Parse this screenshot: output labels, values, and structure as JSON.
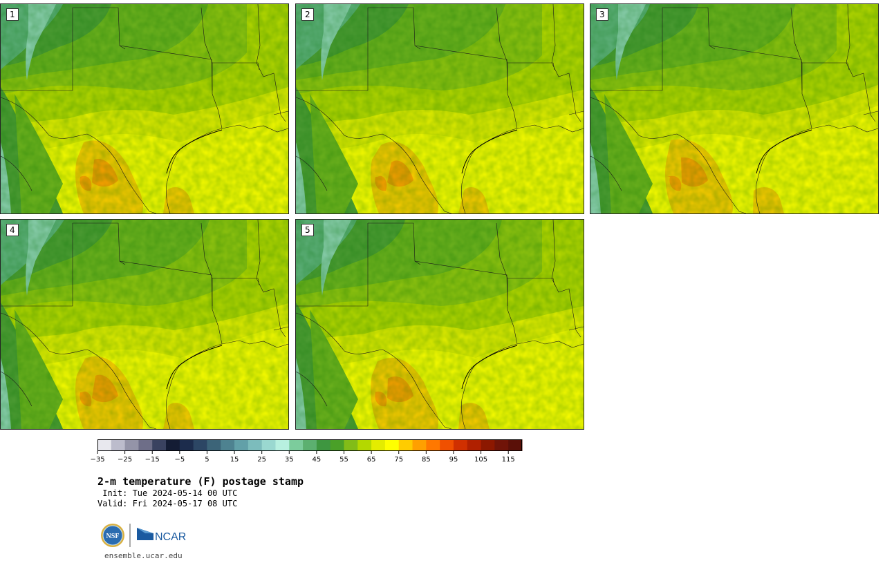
{
  "panels": [
    {
      "number": "1",
      "variant": 0
    },
    {
      "number": "2",
      "variant": 1
    },
    {
      "number": "3",
      "variant": 2
    },
    {
      "number": "4",
      "variant": 3
    },
    {
      "number": "5",
      "variant": 4
    }
  ],
  "colorbar": {
    "colors": [
      "#e8e8ee",
      "#bcbccc",
      "#9494a8",
      "#6e6e88",
      "#3a4260",
      "#141c34",
      "#1c2c4c",
      "#2c4664",
      "#3c6478",
      "#4e8290",
      "#62a0a8",
      "#7cbcbc",
      "#9ad8d0",
      "#b8f0e0",
      "#7ccc9c",
      "#5cb070",
      "#3e9640",
      "#4aa028",
      "#82bc18",
      "#b4d800",
      "#e4ec00",
      "#ffff00",
      "#ffcc00",
      "#ffa000",
      "#ff7800",
      "#f05000",
      "#d03000",
      "#b02000",
      "#8c1800",
      "#701408",
      "#5a1008"
    ],
    "tick_labels": [
      "−35",
      "−25",
      "−15",
      "−5",
      "5",
      "15",
      "25",
      "35",
      "45",
      "55",
      "65",
      "75",
      "85",
      "95",
      "105",
      "115"
    ]
  },
  "title": "2-m temperature (F) postage stamp",
  "init": " Init: Tue 2024-05-14 00 UTC",
  "valid": "Valid: Fri 2024-05-17 08 UTC",
  "logos": {
    "nsf": "NSF",
    "ncar": "NCAR"
  },
  "url": "ensemble.ucar.edu"
}
